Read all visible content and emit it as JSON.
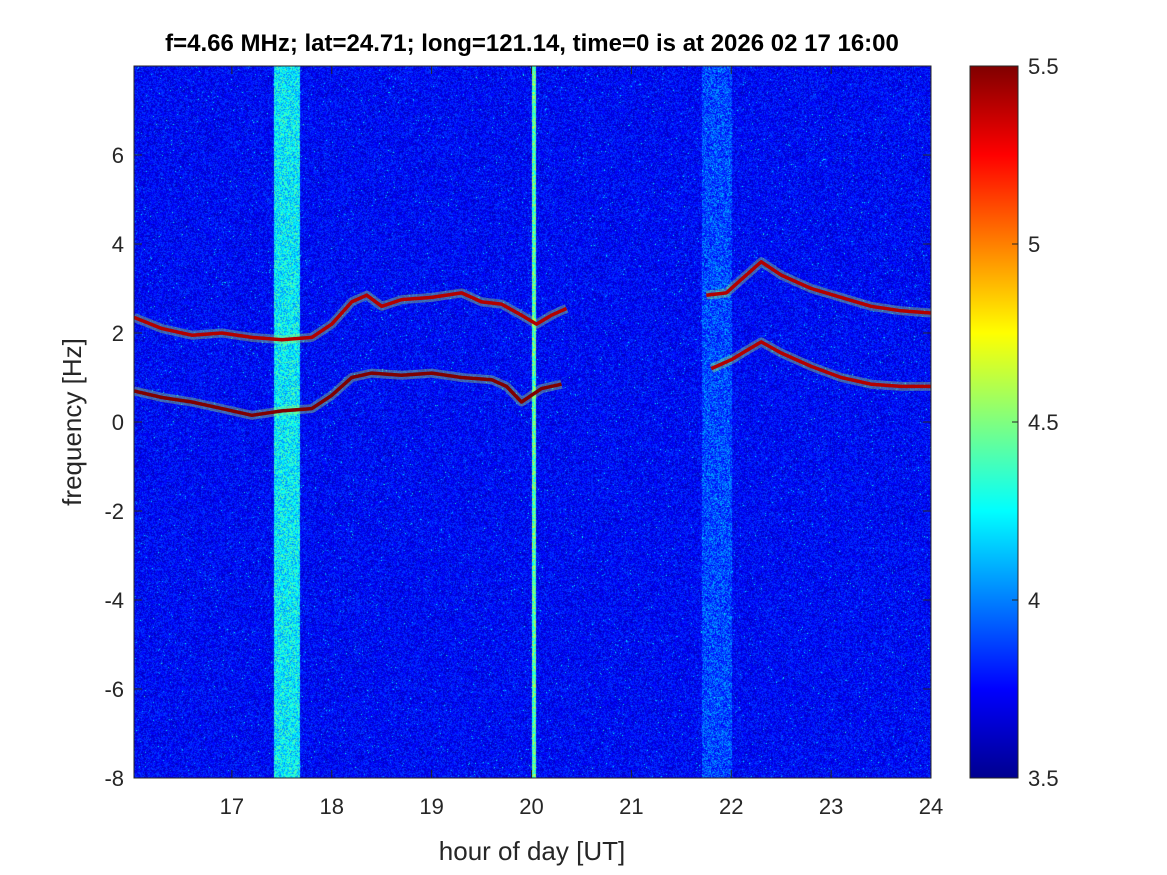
{
  "chart_data": {
    "type": "heatmap",
    "title": "f=4.66 MHz;  lat=24.71; long=121.14, time=0 is at 2026 02 17 16:00",
    "xlabel": "hour of day [UT]",
    "ylabel": "frequency [Hz]",
    "xlim": [
      16.02,
      24.0
    ],
    "ylim": [
      -8,
      8
    ],
    "xticks": [
      17,
      18,
      19,
      20,
      21,
      22,
      23,
      24
    ],
    "xtick_labels": [
      "17",
      "18",
      "19",
      "20",
      "21",
      "22",
      "23",
      "24"
    ],
    "yticks": [
      -8,
      -6,
      -4,
      -2,
      0,
      2,
      4,
      6
    ],
    "ytick_labels": [
      "-8",
      "-6",
      "-4",
      "-2",
      "0",
      "2",
      "4",
      "6"
    ],
    "colormap": "jet",
    "colorbar": {
      "range": [
        3.5,
        5.5
      ],
      "ticks": [
        3.5,
        4,
        4.5,
        5,
        5.5
      ],
      "tick_labels": [
        "3.5",
        "4",
        "4.5",
        "5",
        "5.5"
      ]
    },
    "grid": false,
    "background_level": 3.75,
    "traces": [
      {
        "points": [
          [
            16.02,
            2.35
          ],
          [
            16.3,
            2.1
          ],
          [
            16.6,
            1.95
          ],
          [
            16.9,
            2.0
          ],
          [
            17.2,
            1.9
          ],
          [
            17.5,
            1.85
          ],
          [
            17.8,
            1.9
          ],
          [
            18.0,
            2.2
          ],
          [
            18.2,
            2.7
          ],
          [
            18.35,
            2.85
          ],
          [
            18.5,
            2.6
          ],
          [
            18.7,
            2.75
          ],
          [
            19.0,
            2.8
          ],
          [
            19.3,
            2.9
          ],
          [
            19.5,
            2.7
          ],
          [
            19.7,
            2.65
          ],
          [
            19.9,
            2.4
          ],
          [
            20.05,
            2.2
          ],
          [
            20.2,
            2.4
          ],
          [
            20.35,
            2.55
          ]
        ],
        "level": 5.4
      },
      {
        "points": [
          [
            16.02,
            0.7
          ],
          [
            16.3,
            0.55
          ],
          [
            16.6,
            0.45
          ],
          [
            16.9,
            0.3
          ],
          [
            17.2,
            0.15
          ],
          [
            17.5,
            0.25
          ],
          [
            17.8,
            0.3
          ],
          [
            18.0,
            0.6
          ],
          [
            18.2,
            1.0
          ],
          [
            18.4,
            1.1
          ],
          [
            18.7,
            1.05
          ],
          [
            19.0,
            1.1
          ],
          [
            19.3,
            1.0
          ],
          [
            19.6,
            0.95
          ],
          [
            19.75,
            0.8
          ],
          [
            19.9,
            0.45
          ],
          [
            20.1,
            0.75
          ],
          [
            20.3,
            0.85
          ]
        ],
        "level": 5.5
      },
      {
        "points": [
          [
            21.75,
            2.85
          ],
          [
            21.95,
            2.9
          ],
          [
            22.1,
            3.2
          ],
          [
            22.3,
            3.6
          ],
          [
            22.5,
            3.3
          ],
          [
            22.8,
            3.0
          ],
          [
            23.1,
            2.8
          ],
          [
            23.4,
            2.6
          ],
          [
            23.7,
            2.5
          ],
          [
            24.0,
            2.45
          ]
        ],
        "level": 5.4
      },
      {
        "points": [
          [
            21.8,
            1.2
          ],
          [
            22.0,
            1.4
          ],
          [
            22.15,
            1.6
          ],
          [
            22.3,
            1.8
          ],
          [
            22.5,
            1.55
          ],
          [
            22.8,
            1.25
          ],
          [
            23.1,
            1.0
          ],
          [
            23.4,
            0.85
          ],
          [
            23.7,
            0.8
          ],
          [
            24.0,
            0.8
          ]
        ],
        "level": 5.4
      }
    ],
    "noise_bands": [
      {
        "x_range": [
          17.42,
          17.68
        ],
        "level": 4.3
      },
      {
        "x_range": [
          20.0,
          20.04
        ],
        "level": 4.5
      },
      {
        "x_range": [
          21.7,
          22.0
        ],
        "level": 3.95
      }
    ]
  }
}
